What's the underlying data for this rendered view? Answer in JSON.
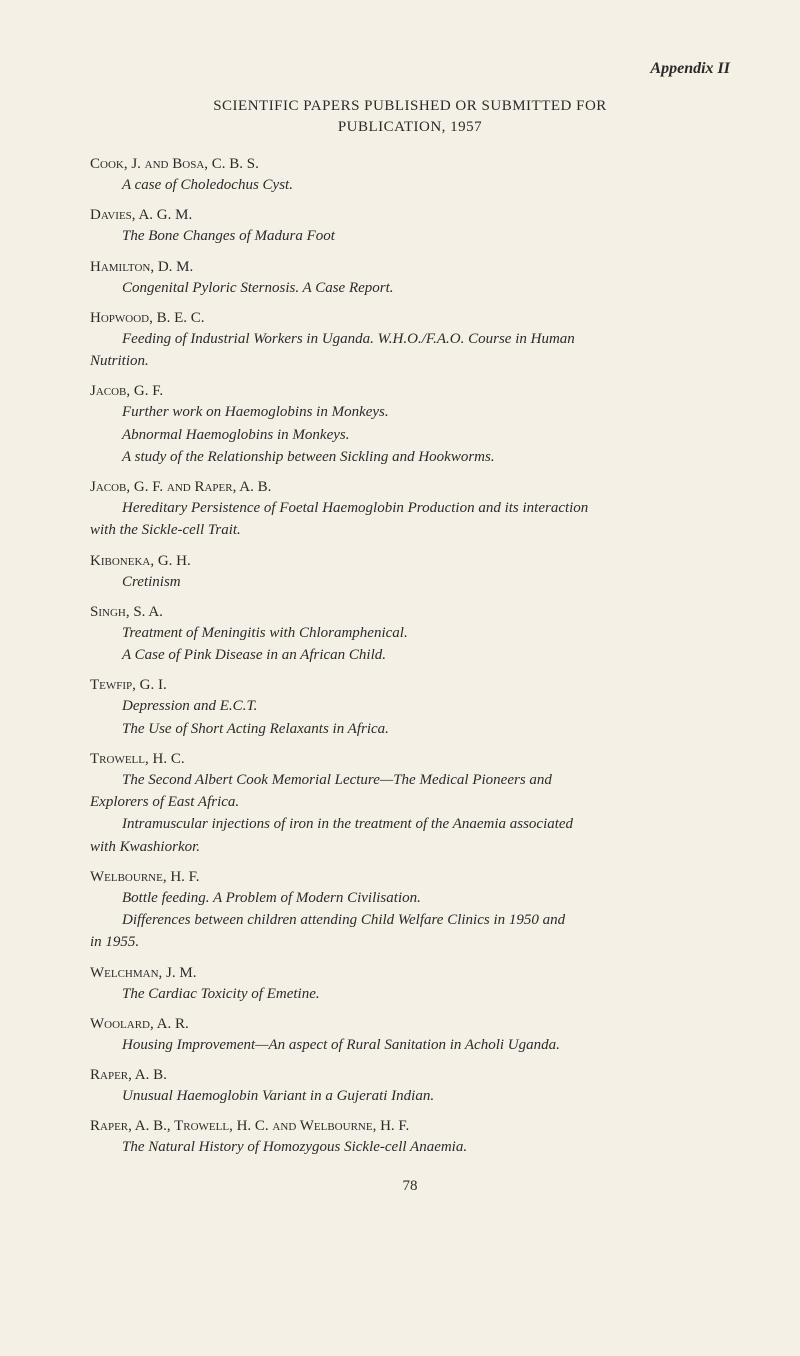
{
  "header": "Appendix II",
  "title_line1": "SCIENTIFIC PAPERS PUBLISHED OR SUBMITTED FOR",
  "title_line2": "PUBLICATION, 1957",
  "entries": [
    {
      "author": "Cook, J. and Bosa, C. B. S.",
      "works": [
        "A case of Choledochus Cyst."
      ]
    },
    {
      "author": "Davies, A. G. M.",
      "works": [
        "The Bone Changes of Madura Foot"
      ]
    },
    {
      "author": "Hamilton, D. M.",
      "works": [
        "Congenital Pyloric Sternosis. A Case Report."
      ]
    },
    {
      "author": "Hopwood, B. E. C.",
      "works_complex": [
        {
          "indented": "Feeding of Industrial Workers in Uganda. W.H.O./F.A.O. Course in Human",
          "cont": "Nutrition."
        }
      ]
    },
    {
      "author": "Jacob, G. F.",
      "works": [
        "Further work on Haemoglobins in Monkeys.",
        "Abnormal Haemoglobins in Monkeys.",
        "A study of the Relationship between Sickling and Hookworms."
      ]
    },
    {
      "author": "Jacob, G. F. and Raper, A. B.",
      "works_complex": [
        {
          "indented": "Hereditary Persistence of Foetal Haemoglobin Production and its interaction",
          "cont": "with the Sickle-cell Trait."
        }
      ]
    },
    {
      "author": "Kiboneka, G. H.",
      "works": [
        "Cretinism"
      ]
    },
    {
      "author": "Singh, S. A.",
      "works": [
        "Treatment of Meningitis with Chloramphenical.",
        "A Case of Pink Disease in an African Child."
      ]
    },
    {
      "author": "Tewfip, G. I.",
      "works": [
        "Depression and E.C.T.",
        "The Use of Short Acting Relaxants in Africa."
      ]
    },
    {
      "author": "Trowell, H. C.",
      "works_complex": [
        {
          "indented": "The Second Albert Cook Memorial Lecture—The Medical Pioneers and",
          "cont": "Explorers of East Africa."
        },
        {
          "indented": "Intramuscular injections of iron in the treatment of the Anaemia associated",
          "cont": "with Kwashiorkor."
        }
      ]
    },
    {
      "author": "Welbourne, H. F.",
      "works_complex": [
        {
          "indented": "Bottle feeding. A Problem of Modern Civilisation."
        },
        {
          "indented": "Differences between children attending Child Welfare Clinics in 1950 and",
          "cont": "in 1955."
        }
      ]
    },
    {
      "author": "Welchman, J. M.",
      "works": [
        "The Cardiac Toxicity of Emetine."
      ]
    },
    {
      "author": "Woolard, A. R.",
      "works": [
        "Housing Improvement—An aspect of Rural Sanitation in Acholi Uganda."
      ]
    },
    {
      "author": "Raper, A. B.",
      "works": [
        "Unusual Haemoglobin Variant in a Gujerati Indian."
      ]
    },
    {
      "author": "Raper, A. B., Trowell, H. C. and Welbourne, H. F.",
      "works": [
        "The Natural History of Homozygous Sickle-cell Anaemia."
      ]
    }
  ],
  "page_number": "78"
}
